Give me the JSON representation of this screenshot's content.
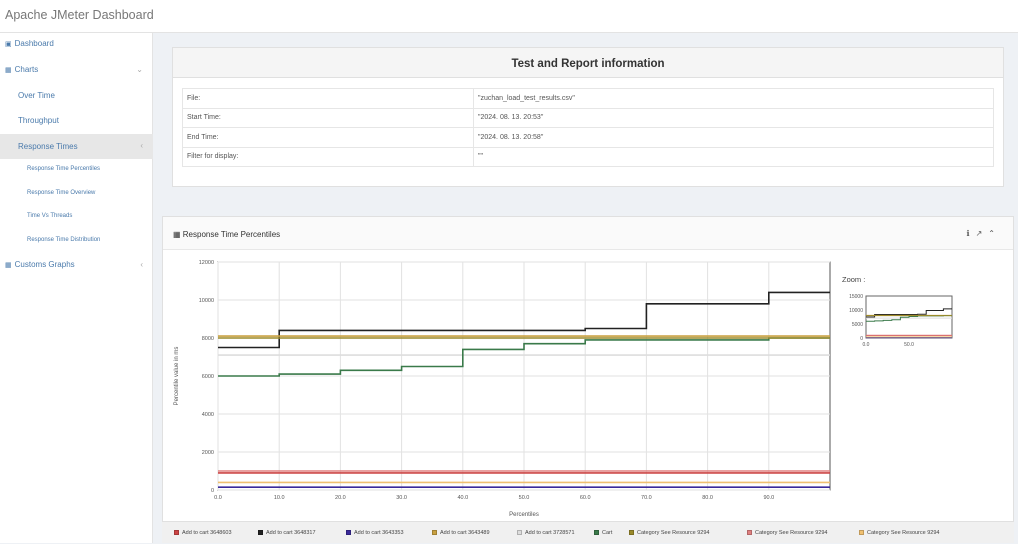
{
  "app": {
    "title": "Apache JMeter Dashboard"
  },
  "sidebar": {
    "items": [
      {
        "label": "Dashboard",
        "icon": "dashboard-icon"
      },
      {
        "label": "Charts",
        "icon": "bar-chart-icon"
      },
      {
        "label": "Over Time"
      },
      {
        "label": "Throughput"
      },
      {
        "label": "Response Times"
      },
      {
        "label": "Response Time Percentiles"
      },
      {
        "label": "Response Time Overview"
      },
      {
        "label": "Time Vs Threads"
      },
      {
        "label": "Response Time Distribution"
      },
      {
        "label": "Customs Graphs",
        "icon": "bar-chart-icon"
      }
    ]
  },
  "info": {
    "title": "Test and Report information",
    "rows": [
      {
        "key": "File:",
        "value": "\"zuchan_load_test_results.csv\""
      },
      {
        "key": "Start Time:",
        "value": "\"2024. 08. 13. 20:53\""
      },
      {
        "key": "End Time:",
        "value": "\"2024. 08. 13. 20:58\""
      },
      {
        "key": "Filter for display:",
        "value": "\"\""
      }
    ]
  },
  "chart_panel": {
    "title": "Response Time Percentiles",
    "zoom_label": "Zoom :"
  },
  "chart_data": {
    "type": "line",
    "xlabel": "Percentiles",
    "ylabel": "Percentile value in ms",
    "xlim": [
      0,
      100
    ],
    "ylim": [
      0,
      12000
    ],
    "x_ticks": [
      "0.0",
      "10.0",
      "20.0",
      "30.0",
      "40.0",
      "50.0",
      "60.0",
      "70.0",
      "80.0",
      "90.0"
    ],
    "y_ticks": [
      "0",
      "2000",
      "4000",
      "6000",
      "8000",
      "10000",
      "12000"
    ],
    "grid": true,
    "legend_position": "bottom",
    "x": [
      0,
      10,
      20,
      30,
      40,
      50,
      60,
      70,
      80,
      90,
      100
    ],
    "series": [
      {
        "name": "Add to cart 3648603",
        "color": "#cc4444",
        "values": [
          900,
          900,
          900,
          900,
          900,
          900,
          900,
          900,
          900,
          900,
          900
        ]
      },
      {
        "name": "Add to cart 3648317",
        "color": "#222222",
        "values": [
          7500,
          8400,
          8400,
          8400,
          8400,
          8400,
          8500,
          9800,
          9800,
          10400,
          10400
        ]
      },
      {
        "name": "Add to cart 3643353",
        "color": "#3a2a9a",
        "values": [
          150,
          150,
          150,
          150,
          150,
          150,
          150,
          150,
          150,
          150,
          150
        ]
      },
      {
        "name": "Add to cart 3643489",
        "color": "#c8a040",
        "values": [
          8100,
          8100,
          8100,
          8100,
          8100,
          8100,
          8100,
          8100,
          8100,
          8100,
          8100
        ]
      },
      {
        "name": "Add to cart 3728571",
        "color": "#dddddd",
        "values": [
          7100,
          7100,
          7100,
          7100,
          7100,
          7100,
          7100,
          7100,
          7100,
          7100,
          7100
        ]
      },
      {
        "name": "Cart",
        "color": "#3a7a4a",
        "values": [
          6000,
          6100,
          6300,
          6500,
          7400,
          7700,
          7900,
          7900,
          7900,
          8000,
          8000
        ]
      },
      {
        "name": "Category See Resource 9294",
        "color": "#9a8a2a",
        "values": [
          8000,
          8000,
          8000,
          8000,
          8000,
          8000,
          8000,
          8000,
          8000,
          8000,
          8000
        ]
      },
      {
        "name": "Category See Resource 9294",
        "color": "#e08080",
        "values": [
          1000,
          1000,
          1000,
          1000,
          1000,
          1000,
          1000,
          1000,
          1000,
          1000,
          1000
        ]
      },
      {
        "name": "Category See Resource 9294",
        "color": "#f0c070",
        "values": [
          400,
          400,
          400,
          400,
          400,
          400,
          400,
          400,
          400,
          400,
          400
        ]
      }
    ]
  },
  "zoom_chart": {
    "y_ticks": [
      "0",
      "5000",
      "10000",
      "15000"
    ],
    "x_ticks": [
      "0.0",
      "50.0"
    ]
  }
}
